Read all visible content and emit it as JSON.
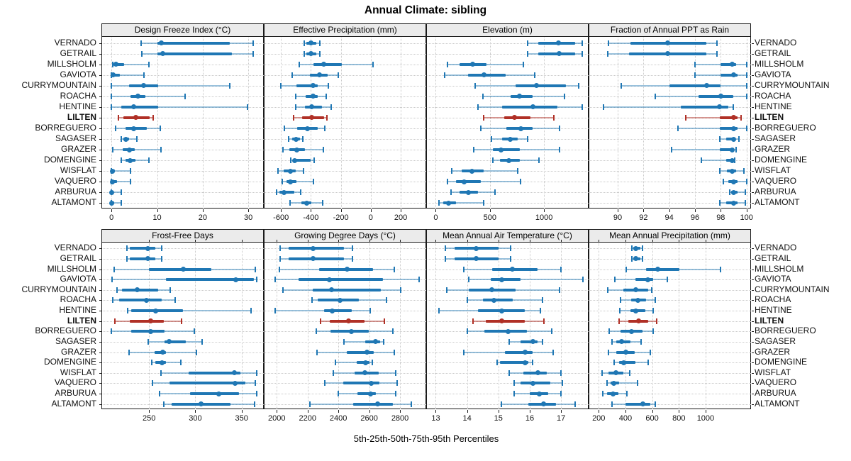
{
  "title": "Annual Climate: sibling",
  "xlabel": "5th-25th-50th-75th-95th Percentiles",
  "percentile_labels": [
    "5th",
    "25th",
    "50th",
    "75th",
    "95th"
  ],
  "sites": [
    "VERNADO",
    "GETRAIL",
    "MILLSHOLM",
    "GAVIOTA",
    "CURRYMOUNTAIN",
    "ROACHA",
    "HENTINE",
    "LILTEN",
    "BORREGUERO",
    "SAGASER",
    "GRAZER",
    "DOMENGINE",
    "WISFLAT",
    "VAQUERO",
    "ARBURUA",
    "ALTAMONT"
  ],
  "highlight_site": "LILTEN",
  "colors": {
    "series_blue": "#1f77b4",
    "series_blue_light": "rgba(31,119,180,0.45)",
    "highlight_red": "#b03026",
    "highlight_red_light": "rgba(176,48,38,0.5)",
    "strip_bg": "#ebebeb",
    "grid": "#c9c9c9",
    "border": "#1a1a1a"
  },
  "chart_data": [
    {
      "type": "scatter",
      "variant": "percentile-interval-dotplot",
      "title": "Design Freeze Index (°C)",
      "grid_row": 0,
      "grid_col": 0,
      "xlim": [
        -1.9,
        33.4
      ],
      "ticks": [
        0,
        10,
        20,
        30
      ],
      "values": [
        [
          6.5,
          10,
          11,
          26,
          31
        ],
        [
          6.6,
          10,
          11.2,
          26.4,
          31.1
        ],
        [
          0.2,
          0.4,
          1,
          2.7,
          8.2
        ],
        [
          0,
          0.1,
          0.3,
          1.9,
          7.1
        ],
        [
          0,
          3.9,
          7.1,
          10.2,
          25.9
        ],
        [
          0,
          4.2,
          5.8,
          7.5,
          16.2
        ],
        [
          0,
          2.2,
          4.9,
          10.2,
          29.8
        ],
        [
          1.5,
          2.6,
          5.3,
          8.4,
          9.2
        ],
        [
          0.9,
          3.1,
          4.9,
          7.7,
          10.7
        ],
        [
          2.2,
          2.6,
          3.1,
          3.9,
          5.5
        ],
        [
          0.2,
          2.4,
          3.9,
          5.1,
          10.9
        ],
        [
          2.2,
          3.1,
          4.1,
          5.3,
          8.2
        ],
        [
          0,
          0,
          0.2,
          0.7,
          4.2
        ],
        [
          0,
          0,
          0.2,
          1.2,
          4.1
        ],
        [
          0,
          0,
          0.1,
          0.4,
          2.2
        ],
        [
          0,
          0,
          0.1,
          0.6,
          2.2
        ]
      ]
    },
    {
      "type": "scatter",
      "variant": "percentile-interval-dotplot",
      "title": "Effective Precipitation (mm)",
      "grid_row": 0,
      "grid_col": 1,
      "xlim": [
        -705,
        370
      ],
      "ticks": [
        -600,
        -400,
        -200,
        0,
        200
      ],
      "values": [
        [
          -445,
          -430,
          -400,
          -365,
          -340
        ],
        [
          -445,
          -430,
          -400,
          -365,
          -340
        ],
        [
          -480,
          -385,
          -315,
          -195,
          15
        ],
        [
          -525,
          -405,
          -345,
          -290,
          -215
        ],
        [
          -600,
          -495,
          -385,
          -355,
          -285
        ],
        [
          -500,
          -435,
          -385,
          -355,
          -300
        ],
        [
          -500,
          -440,
          -395,
          -325,
          -265
        ],
        [
          -515,
          -460,
          -395,
          -310,
          -295
        ],
        [
          -575,
          -490,
          -425,
          -355,
          -305
        ],
        [
          -550,
          -525,
          -500,
          -475,
          -455
        ],
        [
          -585,
          -545,
          -495,
          -440,
          -315
        ],
        [
          -535,
          -520,
          -510,
          -400,
          -380
        ],
        [
          -620,
          -580,
          -535,
          -500,
          -450
        ],
        [
          -590,
          -565,
          -535,
          -495,
          -385
        ],
        [
          -630,
          -610,
          -580,
          -510,
          -470
        ],
        [
          -540,
          -465,
          -430,
          -395,
          -320
        ]
      ]
    },
    {
      "type": "scatter",
      "variant": "percentile-interval-dotplot",
      "title": "Elevation (m)",
      "grid_row": 0,
      "grid_col": 2,
      "xlim": [
        -75,
        1412
      ],
      "ticks": [
        0,
        500,
        1000
      ],
      "values": [
        [
          850,
          950,
          1135,
          1290,
          1350
        ],
        [
          850,
          950,
          1140,
          1290,
          1350
        ],
        [
          110,
          220,
          340,
          470,
          810
        ],
        [
          85,
          300,
          445,
          645,
          915
        ],
        [
          365,
          735,
          930,
          1200,
          1320
        ],
        [
          435,
          690,
          775,
          895,
          1190
        ],
        [
          390,
          610,
          895,
          1125,
          1350
        ],
        [
          440,
          635,
          730,
          875,
          1090
        ],
        [
          415,
          655,
          785,
          895,
          1145
        ],
        [
          515,
          610,
          685,
          755,
          850
        ],
        [
          350,
          525,
          600,
          775,
          1145
        ],
        [
          530,
          590,
          675,
          775,
          955
        ],
        [
          145,
          240,
          335,
          445,
          755
        ],
        [
          110,
          190,
          265,
          415,
          785
        ],
        [
          140,
          220,
          300,
          390,
          550
        ],
        [
          30,
          70,
          120,
          190,
          440
        ]
      ]
    },
    {
      "type": "scatter",
      "variant": "percentile-interval-dotplot",
      "title": "Fraction of Annual PPT as Rain",
      "grid_row": 0,
      "grid_col": 3,
      "xlim": [
        87.85,
        100.35
      ],
      "ticks": [
        90,
        92,
        94,
        96,
        98,
        100
      ],
      "values": [
        [
          89.3,
          91.0,
          93.9,
          96.9,
          97.7
        ],
        [
          89.2,
          90.9,
          93.9,
          96.9,
          97.7
        ],
        [
          96.0,
          98.0,
          98.9,
          99.2,
          100.0
        ],
        [
          96.0,
          98.0,
          99.0,
          99.3,
          100.0
        ],
        [
          90.3,
          94.0,
          96.9,
          98.0,
          100.0
        ],
        [
          92.9,
          96.3,
          98.0,
          99.0,
          100.0
        ],
        [
          88.9,
          94.9,
          97.9,
          98.6,
          99.0
        ],
        [
          95.3,
          97.9,
          99.0,
          99.3,
          99.6
        ],
        [
          94.7,
          97.9,
          99.0,
          99.3,
          100.0
        ],
        [
          97.9,
          98.4,
          99.0,
          99.1,
          99.4
        ],
        [
          94.2,
          97.9,
          98.9,
          99.0,
          99.2
        ],
        [
          96.5,
          98.4,
          98.9,
          99.0,
          99.1
        ],
        [
          97.9,
          98.5,
          98.9,
          99.2,
          99.8
        ],
        [
          98.2,
          98.6,
          99.0,
          99.3,
          100.0
        ],
        [
          98.7,
          98.8,
          99.0,
          99.3,
          99.9
        ],
        [
          97.9,
          98.4,
          99.0,
          99.3,
          99.9
        ]
      ]
    },
    {
      "type": "scatter",
      "variant": "percentile-interval-dotplot",
      "title": "Frost-Free Days",
      "grid_row": 1,
      "grid_col": 0,
      "xlim": [
        200,
        374
      ],
      "ticks": [
        250,
        300,
        350
      ],
      "values": [
        [
          226,
          229,
          249,
          257,
          264
        ],
        [
          226,
          229,
          249,
          257,
          264
        ],
        [
          212,
          250,
          287,
          317,
          365
        ],
        [
          210,
          268,
          344,
          363,
          366
        ],
        [
          215,
          221,
          237,
          260,
          273
        ],
        [
          211,
          218,
          247,
          264,
          278
        ],
        [
          227,
          231,
          257,
          287,
          360
        ],
        [
          213,
          229,
          252,
          266,
          285
        ],
        [
          209,
          231,
          252,
          267,
          299
        ],
        [
          249,
          267,
          272,
          290,
          307
        ],
        [
          228,
          256,
          265,
          268,
          301
        ],
        [
          253,
          257,
          264,
          268,
          284
        ],
        [
          263,
          293,
          342,
          349,
          366
        ],
        [
          254,
          272,
          343,
          354,
          365
        ],
        [
          261,
          294,
          325,
          347,
          366
        ],
        [
          266,
          274,
          306,
          338,
          364
        ]
      ]
    },
    {
      "type": "scatter",
      "variant": "percentile-interval-dotplot",
      "title": "Growing Degree Days (°C)",
      "grid_row": 1,
      "grid_col": 1,
      "xlim": [
        1925,
        2970
      ],
      "ticks": [
        2000,
        2200,
        2400,
        2600,
        2800
      ],
      "values": [
        [
          2020,
          2075,
          2235,
          2435,
          2490
        ],
        [
          2020,
          2075,
          2235,
          2435,
          2490
        ],
        [
          2015,
          2275,
          2455,
          2625,
          2765
        ],
        [
          1990,
          2140,
          2340,
          2690,
          2925
        ],
        [
          2040,
          2235,
          2355,
          2675,
          2805
        ],
        [
          2230,
          2265,
          2410,
          2535,
          2710
        ],
        [
          1990,
          2305,
          2360,
          2485,
          2605
        ],
        [
          2285,
          2345,
          2465,
          2570,
          2700
        ],
        [
          2255,
          2350,
          2485,
          2595,
          2755
        ],
        [
          2435,
          2575,
          2640,
          2670,
          2695
        ],
        [
          2260,
          2455,
          2585,
          2630,
          2765
        ],
        [
          2380,
          2520,
          2575,
          2600,
          2620
        ],
        [
          2365,
          2505,
          2570,
          2660,
          2770
        ],
        [
          2310,
          2430,
          2615,
          2665,
          2780
        ],
        [
          2400,
          2525,
          2610,
          2645,
          2770
        ],
        [
          2215,
          2495,
          2655,
          2755,
          2875
        ]
      ]
    },
    {
      "type": "scatter",
      "variant": "percentile-interval-dotplot",
      "title": "Mean Annual Air Temperature (°C)",
      "grid_row": 1,
      "grid_col": 2,
      "xlim": [
        12.74,
        17.88
      ],
      "ticks": [
        13,
        14,
        15,
        16,
        17
      ],
      "values": [
        [
          13.3,
          13.6,
          14.3,
          15.0,
          15.4
        ],
        [
          13.3,
          13.6,
          14.3,
          15.0,
          15.4
        ],
        [
          13.9,
          14.8,
          15.45,
          16.25,
          17.0
        ],
        [
          14.05,
          14.75,
          15.1,
          15.7,
          17.7
        ],
        [
          13.35,
          14.05,
          14.8,
          15.55,
          16.95
        ],
        [
          14.0,
          14.5,
          14.85,
          15.45,
          16.4
        ],
        [
          13.1,
          14.35,
          15.1,
          15.85,
          16.35
        ],
        [
          14.2,
          14.6,
          15.1,
          15.85,
          16.45
        ],
        [
          14.0,
          14.55,
          15.3,
          15.9,
          16.7
        ],
        [
          15.35,
          15.7,
          16.1,
          16.25,
          16.4
        ],
        [
          13.9,
          15.2,
          15.85,
          16.1,
          16.75
        ],
        [
          14.95,
          15.05,
          15.85,
          15.95,
          16.1
        ],
        [
          15.35,
          15.8,
          16.25,
          16.55,
          17.0
        ],
        [
          15.5,
          15.7,
          16.1,
          16.65,
          17.05
        ],
        [
          15.5,
          16.0,
          16.3,
          16.6,
          17.0
        ],
        [
          15.1,
          15.95,
          16.45,
          16.85,
          17.45
        ]
      ]
    },
    {
      "type": "scatter",
      "variant": "percentile-interval-dotplot",
      "title": "Mean Annual Precipitation (mm)",
      "grid_row": 1,
      "grid_col": 3,
      "xlim": [
        135,
        1340
      ],
      "ticks": [
        200,
        400,
        600,
        800,
        1000
      ],
      "values": [
        [
          450,
          460,
          476,
          510,
          530
        ],
        [
          450,
          460,
          476,
          510,
          530
        ],
        [
          405,
          555,
          640,
          805,
          1110
        ],
        [
          320,
          475,
          565,
          605,
          715
        ],
        [
          270,
          385,
          480,
          570,
          595
        ],
        [
          365,
          445,
          495,
          555,
          625
        ],
        [
          360,
          435,
          480,
          550,
          605
        ],
        [
          355,
          420,
          500,
          570,
          635
        ],
        [
          280,
          365,
          445,
          530,
          605
        ],
        [
          300,
          330,
          370,
          435,
          515
        ],
        [
          275,
          330,
          405,
          470,
          585
        ],
        [
          315,
          350,
          385,
          475,
          570
        ],
        [
          225,
          275,
          330,
          385,
          430
        ],
        [
          265,
          290,
          315,
          355,
          490
        ],
        [
          230,
          260,
          305,
          345,
          410
        ],
        [
          300,
          400,
          530,
          585,
          625
        ]
      ]
    }
  ]
}
